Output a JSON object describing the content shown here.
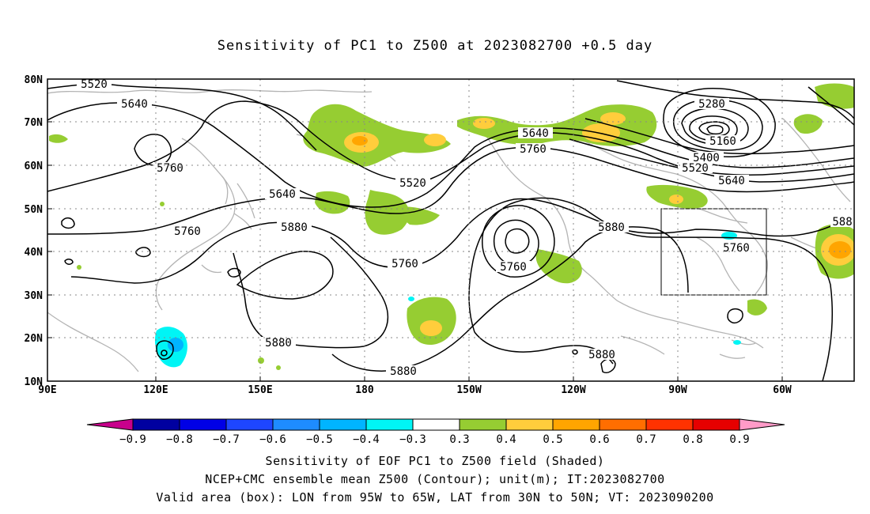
{
  "title": "Sensitivity of PC1 to Z500 at 2023082700 +0.5 day",
  "map": {
    "lat_labels": [
      "80N",
      "70N",
      "60N",
      "50N",
      "40N",
      "30N",
      "20N",
      "10N"
    ],
    "lon_labels": [
      "90E",
      "120E",
      "150E",
      "180",
      "150W",
      "120W",
      "90W",
      "60W"
    ],
    "contour_labels": [
      "5520",
      "5640",
      "5760",
      "5640",
      "5760",
      "5880",
      "5760",
      "5640",
      "5760",
      "5520",
      "5280",
      "5160",
      "5400",
      "5520",
      "5640",
      "5880",
      "5760",
      "5880",
      "5880",
      "5880",
      "5760",
      "5880",
      "588"
    ],
    "box": {
      "lon_from": "95W",
      "lon_to": "65W",
      "lat_from": "30N",
      "lat_to": "50N"
    }
  },
  "colorbar": {
    "labels": [
      "−0.9",
      "−0.8",
      "−0.7",
      "−0.6",
      "−0.5",
      "−0.4",
      "−0.3",
      "0.3",
      "0.4",
      "0.5",
      "0.6",
      "0.7",
      "0.8",
      "0.9"
    ],
    "colors": [
      "#0000a0",
      "#0000e6",
      "#1e46ff",
      "#1e8cff",
      "#00b4ff",
      "#00f5f5",
      "#ffffff",
      "#96cd32",
      "#ffcd3c",
      "#ffa500",
      "#ff6e00",
      "#ff3200",
      "#e60000"
    ],
    "left_tip_color": "#c8008c",
    "right_tip_color": "#ff9bc8"
  },
  "footer": {
    "line1": "Sensitivity of EOF PC1 to Z500 field (Shaded)",
    "line2": "NCEP+CMC ensemble mean Z500 (Contour); unit(m); IT:2023082700",
    "line3": "Valid area (box): LON from 95W to 65W, LAT from 30N to 50N; VT: 2023090200"
  }
}
